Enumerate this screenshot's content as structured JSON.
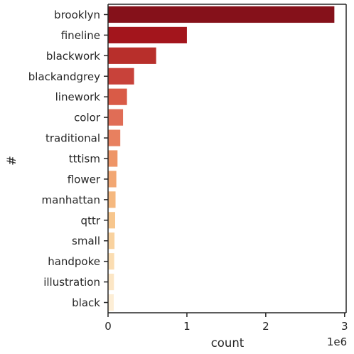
{
  "chart_data": {
    "type": "bar",
    "orientation": "horizontal",
    "title": "",
    "xlabel": "count",
    "ylabel": "#",
    "x_offset_label": "1e6",
    "xlim": [
      0,
      3.02
    ],
    "xticks": [
      0,
      1,
      2,
      3
    ],
    "xtick_labels": [
      "0",
      "1",
      "2",
      "3"
    ],
    "grid": false,
    "categories": [
      "brooklyn",
      "fineline",
      "blackwork",
      "blackandgrey",
      "linework",
      "color",
      "traditional",
      "tttism",
      "flower",
      "manhattan",
      "qttr",
      "small",
      "handpoke",
      "illustration",
      "black"
    ],
    "values_millions": [
      2.87,
      1.0,
      0.61,
      0.33,
      0.24,
      0.19,
      0.155,
      0.12,
      0.105,
      0.095,
      0.09,
      0.082,
      0.078,
      0.075,
      0.072
    ],
    "colors": [
      "#85111a",
      "#a3151c",
      "#b82f2b",
      "#c8423a",
      "#d95b47",
      "#e06d56",
      "#e8805f",
      "#ee9567",
      "#f2a773",
      "#f5b87f",
      "#f7c68d",
      "#f9d29f",
      "#fbddb2",
      "#fce6c5",
      "#fdeed6"
    ]
  }
}
